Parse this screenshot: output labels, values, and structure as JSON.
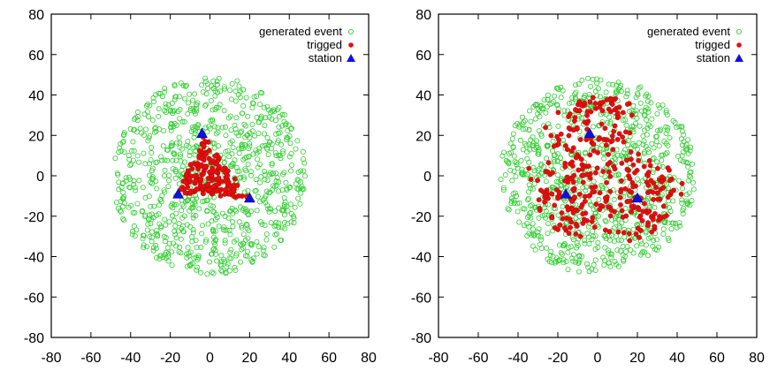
{
  "chart_data": [
    {
      "type": "scatter",
      "title": "",
      "xlabel": "",
      "ylabel": "",
      "xlim": [
        -80,
        80
      ],
      "ylim": [
        -80,
        80
      ],
      "xticks": [
        -80,
        -60,
        -40,
        -20,
        0,
        20,
        40,
        60,
        80
      ],
      "yticks": [
        -80,
        -60,
        -40,
        -20,
        0,
        20,
        40,
        60,
        80
      ],
      "grid": false,
      "legend_position": "top-right",
      "series": [
        {
          "name": "generated event",
          "marker": "open-circle",
          "color": "#33cc33",
          "distribution": "uniform disk",
          "center": [
            0,
            0
          ],
          "radius": 49,
          "count": 900
        },
        {
          "name": "trigged",
          "marker": "filled-circle",
          "color": "#e01010",
          "distribution": "triangle between stations",
          "count": 170
        },
        {
          "name": "station",
          "marker": "filled-triangle",
          "color": "#1010dd",
          "points": [
            [
              -4,
              21
            ],
            [
              -16,
              -9
            ],
            [
              20,
              -11
            ]
          ]
        }
      ]
    },
    {
      "type": "scatter",
      "title": "",
      "xlabel": "",
      "ylabel": "",
      "xlim": [
        -80,
        80
      ],
      "ylim": [
        -80,
        80
      ],
      "xticks": [
        -80,
        -60,
        -40,
        -20,
        0,
        20,
        40,
        60,
        80
      ],
      "yticks": [
        -80,
        -60,
        -40,
        -20,
        0,
        20,
        40,
        60,
        80
      ],
      "grid": false,
      "legend_position": "top-right",
      "series": [
        {
          "name": "generated event",
          "marker": "open-circle",
          "color": "#33cc33",
          "distribution": "uniform disk",
          "center": [
            0,
            0
          ],
          "radius": 49,
          "count": 900
        },
        {
          "name": "trigged",
          "marker": "filled-circle",
          "color": "#e01010",
          "distribution": "expanded region around stations",
          "count": 340
        },
        {
          "name": "station",
          "marker": "filled-triangle",
          "color": "#1010dd",
          "points": [
            [
              -4,
              21
            ],
            [
              -16,
              -9
            ],
            [
              20,
              -11
            ]
          ]
        }
      ]
    }
  ]
}
